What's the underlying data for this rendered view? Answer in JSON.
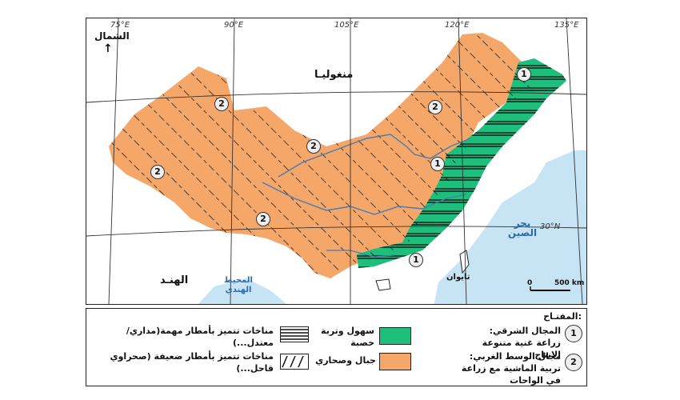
{
  "colors": {
    "plains_green": "#1ebf7c",
    "mountains_orange": "#f5a76a",
    "sea_blue": "#c7e4f4",
    "river_blue": "#4a7bb0",
    "grid_line": "#333333"
  },
  "map": {
    "north_label": "الشمال",
    "north_arrow": "↑",
    "longitudes": [
      "75°E",
      "90°E",
      "105°E",
      "120°E",
      "135°E"
    ],
    "latitude": "30°N",
    "places": {
      "mongolia": "منغوليـا",
      "india": "الهنـد",
      "taiwan": "تايوان",
      "indian_ocean": "المحيط الهندي",
      "china_sea": "بحر الصين"
    },
    "scale": {
      "zero": "0",
      "distance": "500 km"
    },
    "zone_markers": [
      "1",
      "2"
    ]
  },
  "legend": {
    "title": "المفتـاح:",
    "zone1_number": "1",
    "zone1_text": "المجال الشرقي: زراعة غنية متنوعة الانتاج",
    "zone2_number": "2",
    "zone2_text": "مجال الوسط الغربي: تربية الماشية مع زراعة في الواحات",
    "plains_text": "سهول وتربة خصبة",
    "mountains_text": "جبال وصحاري",
    "climate_strong_text": "مناخات تتميز بأمطار مهمة(مداري/ معتدل...)",
    "climate_weak_text": "مناخات تتميز بأمطار ضعيفة (صحراوي قاحل...)"
  }
}
